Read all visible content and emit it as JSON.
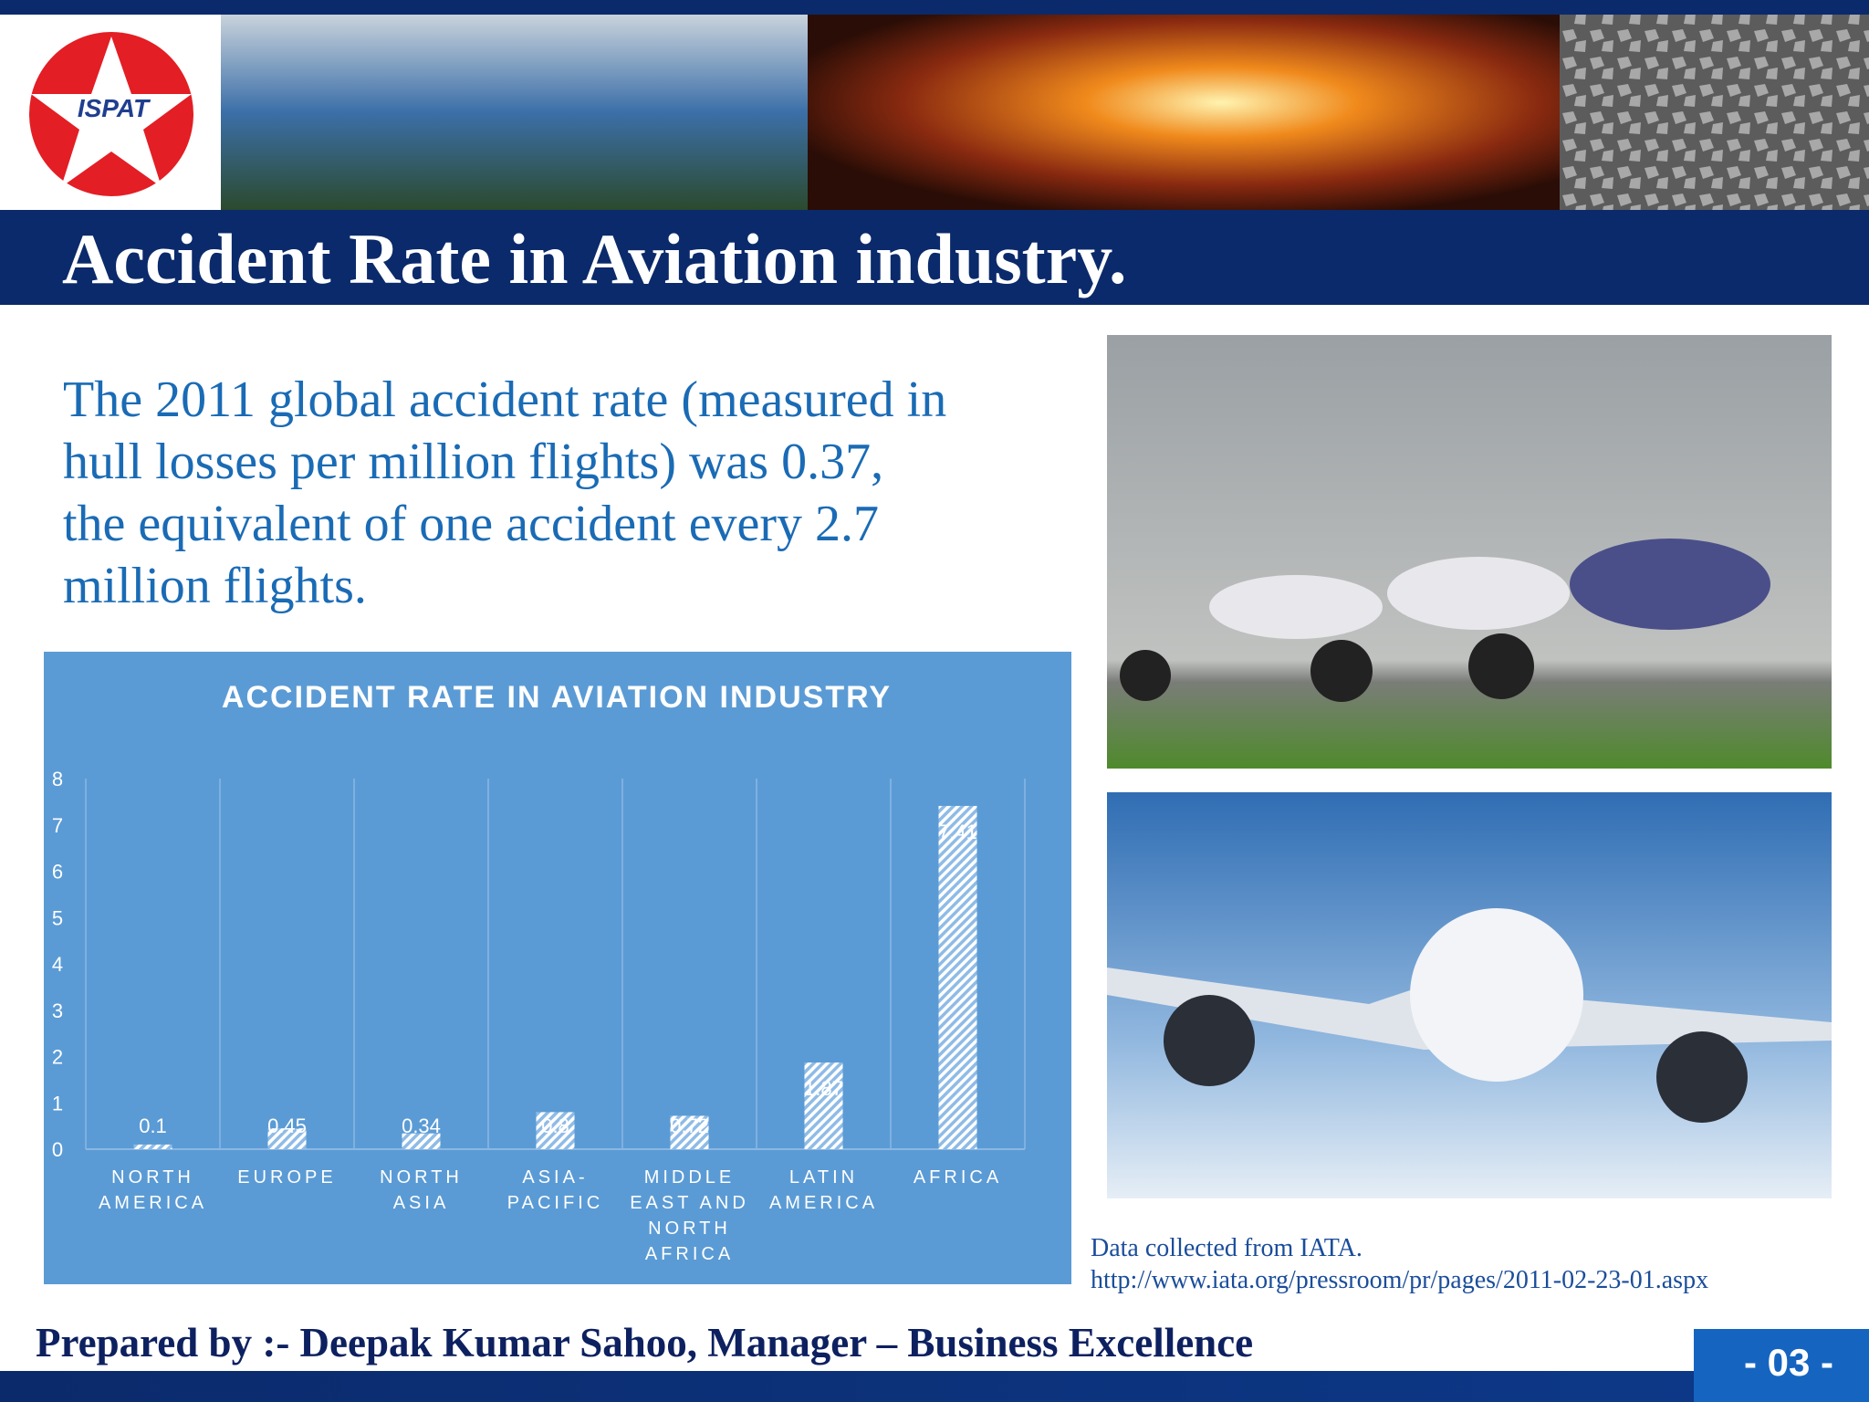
{
  "logo": "ISPAT",
  "title": "Accident Rate in Aviation industry.",
  "intro_lines": [
    "The 2011 global accident rate (measured in",
    "hull losses per million flights) was 0.37,",
    "the equivalent of one accident every 2.7",
    "million flights."
  ],
  "chart_data": {
    "type": "bar",
    "title": "ACCIDENT RATE IN AVIATION INDUSTRY",
    "categories": [
      "NORTH AMERICA",
      "EUROPE",
      "NORTH ASIA",
      "ASIA-PACIFIC",
      "MIDDLE EAST AND NORTH AFRICA",
      "LATIN AMERICA",
      "AFRICA"
    ],
    "values": [
      0.1,
      0.45,
      0.34,
      0.8,
      0.72,
      1.87,
      7.41
    ],
    "color": "#ffffff",
    "ylim": [
      0,
      8
    ],
    "yticks": [
      0,
      1,
      2,
      3,
      4,
      5,
      6,
      7,
      8
    ],
    "grid": true
  },
  "source_lines": [
    "Data collected from IATA.",
    "http://www.iata.org/pressroom/pr/pages/2011-02-23-01.aspx"
  ],
  "footer": "Prepared by :- Deepak  Kumar Sahoo, Manager – Business Excellence",
  "page_number": "- 03 -"
}
